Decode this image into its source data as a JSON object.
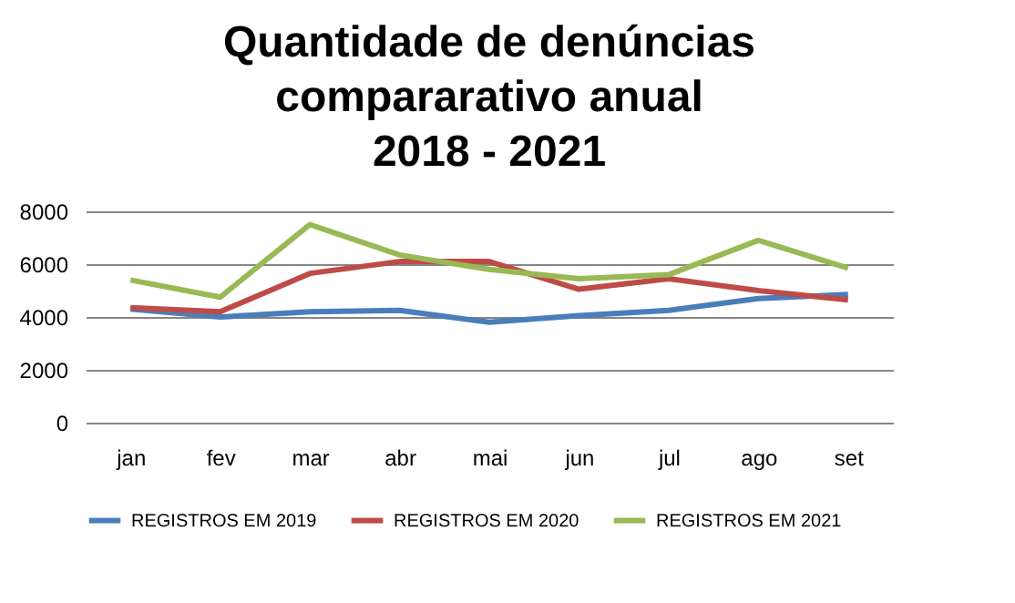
{
  "chart_data": {
    "type": "line",
    "title": "Quantidade de denúncias\ncompararativo anual\n2018 - 2021",
    "categories": [
      "jan",
      "fev",
      "mar",
      "abr",
      "mai",
      "jun",
      "jul",
      "ago",
      "set"
    ],
    "series": [
      {
        "name": "REGISTROS EM 2019",
        "color": "#4a7ebb",
        "values": [
          4300,
          4000,
          4200,
          4250,
          3800,
          4050,
          4250,
          4700,
          4850
        ]
      },
      {
        "name": "REGISTROS EM 2020",
        "color": "#be4b48",
        "values": [
          4350,
          4200,
          5650,
          6100,
          6100,
          5050,
          5450,
          5000,
          4650
        ]
      },
      {
        "name": "REGISTROS EM 2021",
        "color": "#98b954",
        "values": [
          5400,
          4750,
          7500,
          6350,
          5800,
          5450,
          5600,
          6900,
          5850
        ]
      }
    ],
    "ylim": [
      0,
      8000
    ],
    "yticks": [
      0,
      2000,
      4000,
      6000,
      8000
    ],
    "grid": "y",
    "legend": "bottom",
    "marker": "none",
    "line_style": "solid"
  }
}
